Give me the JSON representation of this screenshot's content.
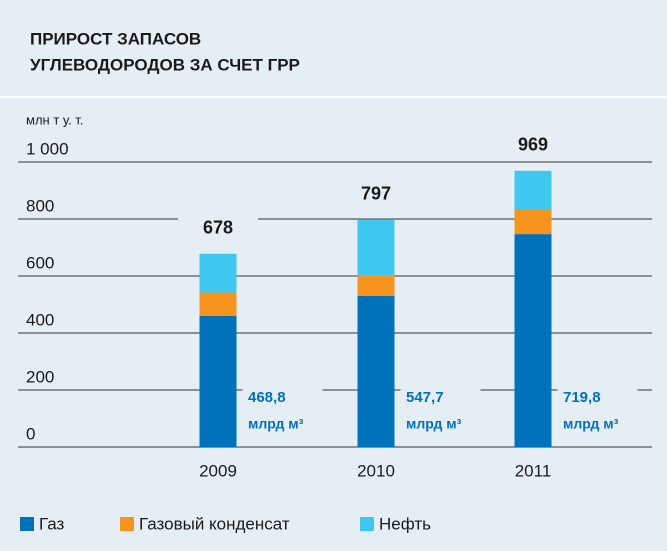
{
  "chart_data": {
    "type": "stacked_bar",
    "title": [
      "ПРИРОСТ ЗАПАСОВ",
      "УГЛЕВОДОРОДОВ ЗА СЧЕТ ГРР"
    ],
    "y_label": "млн т у. т.",
    "categories": [
      "2009",
      "2010",
      "2011"
    ],
    "series": [
      {
        "name": "Газ",
        "color": "#0072bb",
        "values": [
          460,
          530,
          747
        ]
      },
      {
        "name": "Газовый конденсат",
        "color": "#f7941d",
        "values": [
          82,
          73,
          88
        ]
      },
      {
        "name": "Нефть",
        "color": "#3ec8f0",
        "values": [
          136,
          194,
          134
        ]
      }
    ],
    "totals": [
      678,
      797,
      969
    ],
    "gas_volume_labels": [
      "468,8",
      "547,7",
      "719,8"
    ],
    "gas_volume_unit": "млрд м³",
    "ylim": [
      0,
      1000
    ],
    "yticks": [
      0,
      200,
      400,
      600,
      800,
      {
        "value": 1000,
        "label": "1 000"
      }
    ],
    "grid": true
  }
}
